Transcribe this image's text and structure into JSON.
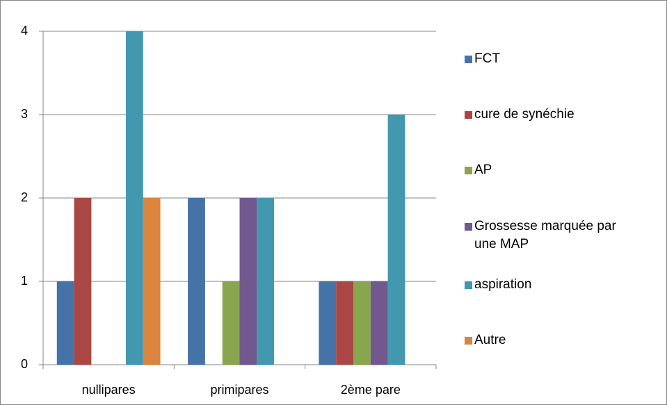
{
  "chart_data": {
    "type": "bar",
    "categories": [
      "nullipares",
      "primipares",
      "2ème pare"
    ],
    "series": [
      {
        "name": "FCT",
        "color": "#4572a7",
        "values": [
          1,
          2,
          1
        ]
      },
      {
        "name": "cure de synéchie",
        "color": "#aa4643",
        "values": [
          2,
          0,
          1
        ]
      },
      {
        "name": "AP",
        "color": "#89a54e",
        "values": [
          0,
          1,
          1
        ]
      },
      {
        "name": "Grossesse marquée par une MAP",
        "color": "#71588f",
        "values": [
          0,
          2,
          1
        ]
      },
      {
        "name": "aspiration",
        "color": "#4198af",
        "values": [
          4,
          2,
          3
        ]
      },
      {
        "name": "Autre",
        "color": "#db843d",
        "values": [
          2,
          0,
          0
        ]
      }
    ],
    "ylim": [
      0,
      4
    ],
    "yticks": [
      0,
      1,
      2,
      3,
      4
    ],
    "grid": true,
    "legend": "right"
  }
}
